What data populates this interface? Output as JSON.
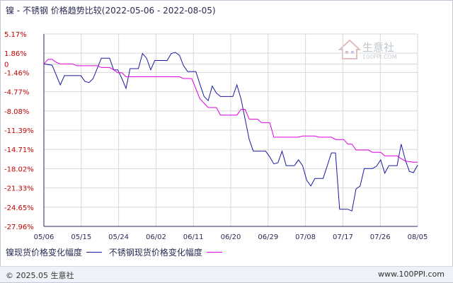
{
  "title": "镍 - 不锈钢 价格趋势比较(2022-05-06 - 2022-08-05)",
  "watermark": {
    "name": "生意社",
    "url": "100PPI.COM"
  },
  "footer": {
    "copyright": "© 2025.05 生意社",
    "site": "www.100PPI.com"
  },
  "colors": {
    "nickel": "#1a1aa0",
    "stainless": "#e000e0",
    "axis": "#2a2a55",
    "grid": "#d8d8d8",
    "ytick": "#c00000"
  },
  "chart_data": {
    "type": "line",
    "x_ticks": [
      "05/06",
      "05/15",
      "05/24",
      "06/02",
      "06/11",
      "06/20",
      "06/29",
      "07/08",
      "07/17",
      "07/26",
      "08/05"
    ],
    "y_ticks": [
      "5.17%",
      "1.86%",
      "0",
      "-1.46%",
      "-4.77%",
      "-8.08%",
      "-11.39%",
      "-14.71%",
      "-18.02%",
      "-21.33%",
      "-24.65%",
      "-27.96%"
    ],
    "y_tick_values": [
      5.17,
      1.86,
      0,
      -1.46,
      -4.77,
      -8.08,
      -11.39,
      -14.71,
      -18.02,
      -21.33,
      -24.65,
      -27.96
    ],
    "ylim": [
      -27.96,
      5.17
    ],
    "x_range_days": [
      0,
      91
    ],
    "grid": true,
    "legend_position": "bottom-left",
    "series": [
      {
        "name": "镍现货价格变化幅度",
        "color": "#1a1aa0",
        "points": [
          [
            0,
            0
          ],
          [
            2,
            -0.2
          ],
          [
            4,
            -3.6
          ],
          [
            5,
            -2.0
          ],
          [
            9,
            -2.0
          ],
          [
            10,
            -3.0
          ],
          [
            11,
            -3.2
          ],
          [
            12,
            -2.5
          ],
          [
            14,
            1.0
          ],
          [
            16,
            1.0
          ],
          [
            17,
            -1.0
          ],
          [
            18,
            -1.0
          ],
          [
            19,
            -2.5
          ],
          [
            20,
            -4.2
          ],
          [
            21,
            -0.8
          ],
          [
            23,
            -0.8
          ],
          [
            24,
            1.8
          ],
          [
            25,
            1.0
          ],
          [
            26,
            -1.0
          ],
          [
            27,
            0.6
          ],
          [
            30,
            0.6
          ],
          [
            31,
            1.8
          ],
          [
            32,
            2.0
          ],
          [
            33,
            1.5
          ],
          [
            34,
            -0.3
          ],
          [
            35,
            -1.3
          ],
          [
            37,
            -1.3
          ],
          [
            38,
            -3.5
          ],
          [
            39,
            -5.6
          ],
          [
            40,
            -6.3
          ],
          [
            41,
            -3.8
          ],
          [
            42,
            -5.0
          ],
          [
            43,
            -5.6
          ],
          [
            46,
            -5.6
          ],
          [
            47,
            -3.6
          ],
          [
            48,
            -6.0
          ],
          [
            50,
            -13.0
          ],
          [
            51,
            -15.0
          ],
          [
            54,
            -15.0
          ],
          [
            55,
            -16.0
          ],
          [
            56,
            -17.2
          ],
          [
            57,
            -17.0
          ],
          [
            58,
            -15.0
          ],
          [
            59,
            -17.5
          ],
          [
            61,
            -17.5
          ],
          [
            62,
            -16.5
          ],
          [
            63,
            -17.5
          ],
          [
            64,
            -20.0
          ],
          [
            65,
            -21.0
          ],
          [
            66,
            -19.7
          ],
          [
            68,
            -19.7
          ],
          [
            69,
            -17.5
          ],
          [
            70,
            -15.3
          ],
          [
            71,
            -15.3
          ],
          [
            72,
            -25.0
          ],
          [
            74,
            -25.0
          ],
          [
            75,
            -25.3
          ],
          [
            76,
            -21.5
          ],
          [
            77,
            -21.0
          ],
          [
            78,
            -18.0
          ],
          [
            80,
            -18.0
          ],
          [
            81,
            -17.6
          ],
          [
            82,
            -16.5
          ],
          [
            83,
            -18.8
          ],
          [
            84,
            -17.5
          ],
          [
            86,
            -17.5
          ],
          [
            87,
            -13.8
          ],
          [
            88,
            -16.5
          ],
          [
            89,
            -18.5
          ],
          [
            90,
            -18.7
          ],
          [
            91,
            -17.4
          ]
        ]
      },
      {
        "name": "不锈钢现货价格变化幅度",
        "color": "#e000e0",
        "points": [
          [
            0,
            0
          ],
          [
            1,
            0.8
          ],
          [
            2,
            0.8
          ],
          [
            3,
            0.3
          ],
          [
            4,
            0.0
          ],
          [
            7,
            0.0
          ],
          [
            8,
            -0.3
          ],
          [
            13,
            -0.3
          ],
          [
            14,
            -0.6
          ],
          [
            16,
            -0.6
          ],
          [
            17,
            -1.0
          ],
          [
            18,
            -1.5
          ],
          [
            19,
            -1.5
          ],
          [
            20,
            -2.2
          ],
          [
            33,
            -2.2
          ],
          [
            34,
            -2.5
          ],
          [
            36,
            -2.5
          ],
          [
            38,
            -6.0
          ],
          [
            40,
            -7.5
          ],
          [
            42,
            -7.5
          ],
          [
            43,
            -8.8
          ],
          [
            47,
            -8.8
          ],
          [
            48,
            -7.8
          ],
          [
            49,
            -7.8
          ],
          [
            50,
            -9.5
          ],
          [
            52,
            -9.5
          ],
          [
            53,
            -10.1
          ],
          [
            55,
            -10.1
          ],
          [
            56,
            -12.6
          ],
          [
            62,
            -12.6
          ],
          [
            63,
            -12.4
          ],
          [
            66,
            -12.4
          ],
          [
            67,
            -12.6
          ],
          [
            70,
            -12.6
          ],
          [
            71,
            -13.0
          ],
          [
            73,
            -13.0
          ],
          [
            74,
            -13.8
          ],
          [
            75,
            -13.8
          ],
          [
            76,
            -14.8
          ],
          [
            79,
            -14.8
          ],
          [
            80,
            -15.2
          ],
          [
            82,
            -15.2
          ],
          [
            83,
            -15.8
          ],
          [
            86,
            -15.8
          ],
          [
            87,
            -16.3
          ],
          [
            88,
            -16.7
          ],
          [
            90,
            -16.9
          ],
          [
            91,
            -16.9
          ]
        ]
      }
    ]
  }
}
